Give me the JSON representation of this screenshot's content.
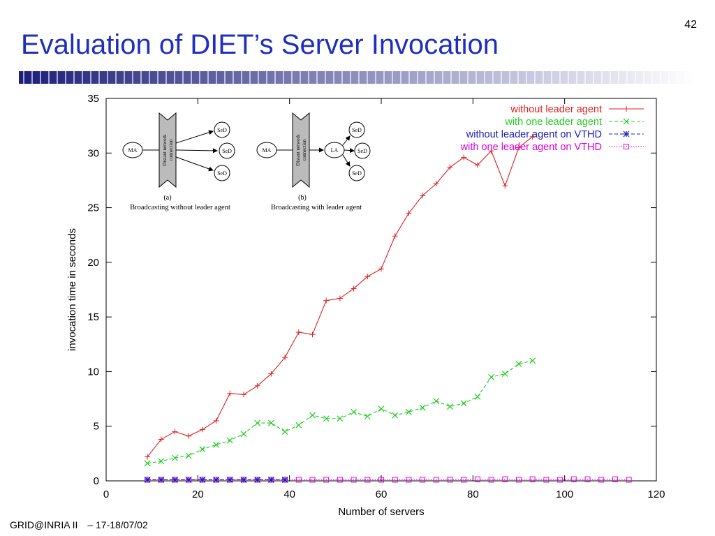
{
  "slide": {
    "title": "Evaluation of DIET’s Server Invocation",
    "page_number": "42",
    "footer_left": "GRID@INRIA II",
    "footer_right": "– 17-18/07/02"
  },
  "colors": {
    "title": "#1f2fbd",
    "bar_dark": "#1c1f7a",
    "bar_light": "#ffffff",
    "series_red": "#e02020",
    "series_green": "#22cc22",
    "series_blue": "#1b1bbd",
    "series_magenta": "#e000e0"
  },
  "inset": {
    "a": {
      "master": "MA",
      "connection_line1": "Distant network",
      "connection_line2": "connection",
      "sed": [
        "SeD",
        "SeD",
        "SeD"
      ],
      "label": "(a)",
      "caption": "Broadcasting without leader agent"
    },
    "b": {
      "master": "MA",
      "connection_line1": "Distant network",
      "connection_line2": "connection",
      "leader": "LA",
      "sed": [
        "SeD",
        "SeD",
        "SeD"
      ],
      "label": "(b)",
      "caption": "Broadcasting with leader agent"
    }
  },
  "chart_data": {
    "type": "line",
    "title": "",
    "xlabel": "Number of servers",
    "ylabel": "invocation time in seconds",
    "xlim": [
      0,
      120
    ],
    "ylim": [
      0,
      35
    ],
    "xticks": [
      0,
      20,
      40,
      60,
      80,
      100,
      120
    ],
    "yticks": [
      0,
      5,
      10,
      15,
      20,
      25,
      30,
      35
    ],
    "grid": false,
    "legend_position": "top-right",
    "series": [
      {
        "name": "without leader agent",
        "color": "#e02020",
        "marker": "plus",
        "dash": "solid",
        "x": [
          9,
          12,
          15,
          18,
          21,
          24,
          27,
          30,
          33,
          36,
          39,
          42,
          45,
          48,
          51,
          54,
          57,
          60,
          63,
          66,
          69,
          72,
          75,
          78,
          81,
          84,
          87,
          90,
          93
        ],
        "y": [
          2.2,
          3.8,
          4.5,
          4.1,
          4.7,
          5.5,
          8.0,
          7.9,
          8.7,
          9.8,
          11.3,
          13.6,
          13.4,
          16.5,
          16.7,
          17.6,
          18.7,
          19.4,
          22.4,
          24.5,
          26.1,
          27.2,
          28.7,
          29.6,
          28.9,
          30.2,
          27.0,
          30.5,
          31.5
        ]
      },
      {
        "name": "with one leader agent",
        "color": "#22cc22",
        "marker": "cross",
        "dash": "dashed",
        "x": [
          9,
          12,
          15,
          18,
          21,
          24,
          27,
          30,
          33,
          36,
          39,
          42,
          45,
          48,
          51,
          54,
          57,
          60,
          63,
          66,
          69,
          72,
          75,
          78,
          81,
          84,
          87,
          90,
          93
        ],
        "y": [
          1.6,
          1.8,
          2.1,
          2.3,
          2.9,
          3.3,
          3.7,
          4.3,
          5.3,
          5.3,
          4.5,
          5.1,
          6.0,
          5.7,
          5.7,
          6.3,
          5.9,
          6.6,
          6.0,
          6.3,
          6.7,
          7.3,
          6.8,
          7.1,
          7.7,
          9.5,
          9.8,
          10.7,
          11.0
        ]
      },
      {
        "name": "without leader agent on VTHD",
        "color": "#1b1bbd",
        "marker": "star",
        "dash": "dashed",
        "x": [
          9,
          12,
          15,
          18,
          21,
          24,
          27,
          30,
          33,
          36,
          39
        ],
        "y": [
          0.1,
          0.1,
          0.1,
          0.1,
          0.1,
          0.1,
          0.1,
          0.1,
          0.1,
          0.1,
          0.1
        ]
      },
      {
        "name": "with one leader agent on VTHD",
        "color": "#e000e0",
        "marker": "square",
        "dash": "dotted",
        "x": [
          9,
          12,
          15,
          18,
          21,
          24,
          27,
          30,
          33,
          36,
          39,
          42,
          45,
          48,
          51,
          54,
          57,
          60,
          63,
          66,
          69,
          72,
          75,
          78,
          81,
          84,
          87,
          90,
          93,
          96,
          99,
          102,
          105,
          108,
          111,
          114
        ],
        "y": [
          0.1,
          0.1,
          0.1,
          0.1,
          0.1,
          0.1,
          0.1,
          0.1,
          0.1,
          0.1,
          0.1,
          0.1,
          0.1,
          0.1,
          0.1,
          0.1,
          0.1,
          0.1,
          0.1,
          0.1,
          0.1,
          0.1,
          0.1,
          0.1,
          0.15,
          0.1,
          0.15,
          0.1,
          0.15,
          0.1,
          0.1,
          0.15,
          0.15,
          0.1,
          0.15,
          0.1
        ]
      }
    ]
  }
}
